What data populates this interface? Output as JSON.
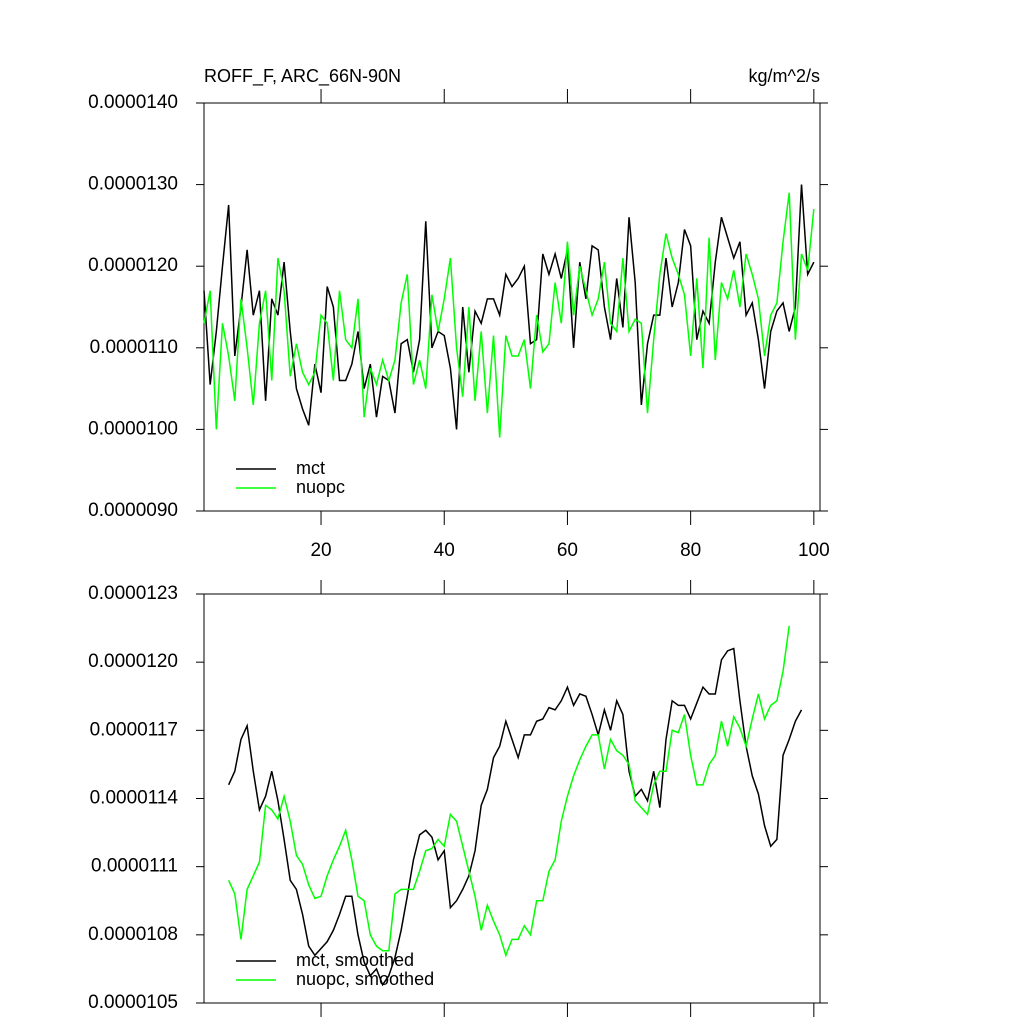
{
  "chart_data": [
    {
      "type": "line",
      "title_left": "ROFF_F, ARC_66N-90N",
      "title_right": "kg/m^2/s",
      "x": [
        1,
        2,
        3,
        4,
        5,
        6,
        7,
        8,
        9,
        10,
        11,
        12,
        13,
        14,
        15,
        16,
        17,
        18,
        19,
        20,
        21,
        22,
        23,
        24,
        25,
        26,
        27,
        28,
        29,
        30,
        31,
        32,
        33,
        34,
        35,
        36,
        37,
        38,
        39,
        40,
        41,
        42,
        43,
        44,
        45,
        46,
        47,
        48,
        49,
        50,
        51,
        52,
        53,
        54,
        55,
        56,
        57,
        58,
        59,
        60,
        61,
        62,
        63,
        64,
        65,
        66,
        67,
        68,
        69,
        70,
        71,
        72,
        73,
        74,
        75,
        76,
        77,
        78,
        79,
        80,
        81,
        82,
        83,
        84,
        85,
        86,
        87,
        88,
        89,
        90,
        91,
        92,
        93,
        94,
        95,
        96,
        97,
        98,
        99,
        100
      ],
      "series": [
        {
          "name": "mct",
          "color": "#000000",
          "values": [
            1.17e-05,
            1.055e-05,
            1.12e-05,
            1.2e-05,
            1.275e-05,
            1.09e-05,
            1.15e-05,
            1.22e-05,
            1.14e-05,
            1.17e-05,
            1.035e-05,
            1.16e-05,
            1.14e-05,
            1.205e-05,
            1.12e-05,
            1.05e-05,
            1.025e-05,
            1.005e-05,
            1.08e-05,
            1.045e-05,
            1.175e-05,
            1.15e-05,
            1.06e-05,
            1.06e-05,
            1.08e-05,
            1.12e-05,
            1.05e-05,
            1.08e-05,
            1.015e-05,
            1.065e-05,
            1.06e-05,
            1.02e-05,
            1.105e-05,
            1.11e-05,
            1.07e-05,
            1.11e-05,
            1.255e-05,
            1.1e-05,
            1.12e-05,
            1.115e-05,
            1.075e-05,
            1e-05,
            1.15e-05,
            1.07e-05,
            1.145e-05,
            1.13e-05,
            1.16e-05,
            1.16e-05,
            1.14e-05,
            1.19e-05,
            1.175e-05,
            1.185e-05,
            1.2e-05,
            1.105e-05,
            1.11e-05,
            1.215e-05,
            1.19e-05,
            1.215e-05,
            1.185e-05,
            1.22e-05,
            1.1e-05,
            1.205e-05,
            1.16e-05,
            1.225e-05,
            1.22e-05,
            1.15e-05,
            1.11e-05,
            1.185e-05,
            1.125e-05,
            1.26e-05,
            1.18e-05,
            1.03e-05,
            1.105e-05,
            1.14e-05,
            1.14e-05,
            1.21e-05,
            1.15e-05,
            1.18e-05,
            1.245e-05,
            1.225e-05,
            1.11e-05,
            1.145e-05,
            1.13e-05,
            1.205e-05,
            1.26e-05,
            1.235e-05,
            1.21e-05,
            1.23e-05,
            1.14e-05,
            1.155e-05,
            1.11e-05,
            1.05e-05,
            1.12e-05,
            1.145e-05,
            1.155e-05,
            1.12e-05,
            1.15e-05,
            1.3e-05,
            1.19e-05,
            1.205e-05
          ]
        },
        {
          "name": "nuopc",
          "color": "#00ff00",
          "values": [
            1.13e-05,
            1.17e-05,
            1e-05,
            1.13e-05,
            1.09e-05,
            1.035e-05,
            1.16e-05,
            1.1e-05,
            1.03e-05,
            1.13e-05,
            1.17e-05,
            1.06e-05,
            1.21e-05,
            1.17e-05,
            1.065e-05,
            1.105e-05,
            1.07e-05,
            1.055e-05,
            1.07e-05,
            1.14e-05,
            1.13e-05,
            1.06e-05,
            1.17e-05,
            1.11e-05,
            1.1e-05,
            1.16e-05,
            1.015e-05,
            1.075e-05,
            1.055e-05,
            1.085e-05,
            1.06e-05,
            1.085e-05,
            1.155e-05,
            1.19e-05,
            1.055e-05,
            1.085e-05,
            1.05e-05,
            1.165e-05,
            1.12e-05,
            1.16e-05,
            1.21e-05,
            1.1e-05,
            1.04e-05,
            1.15e-05,
            1.035e-05,
            1.12e-05,
            1.02e-05,
            1.115e-05,
            9.9e-06,
            1.115e-05,
            1.09e-05,
            1.09e-05,
            1.11e-05,
            1.05e-05,
            1.14e-05,
            1.095e-05,
            1.105e-05,
            1.18e-05,
            1.13e-05,
            1.23e-05,
            1.14e-05,
            1.2e-05,
            1.17e-05,
            1.14e-05,
            1.16e-05,
            1.205e-05,
            1.13e-05,
            1.12e-05,
            1.21e-05,
            1.12e-05,
            1.135e-05,
            1.13e-05,
            1.02e-05,
            1.11e-05,
            1.19e-05,
            1.24e-05,
            1.21e-05,
            1.19e-05,
            1.165e-05,
            1.09e-05,
            1.185e-05,
            1.075e-05,
            1.235e-05,
            1.085e-05,
            1.18e-05,
            1.16e-05,
            1.195e-05,
            1.15e-05,
            1.215e-05,
            1.19e-05,
            1.16e-05,
            1.09e-05,
            1.14e-05,
            1.155e-05,
            1.23e-05,
            1.29e-05,
            1.11e-05,
            1.215e-05,
            1.195e-05,
            1.27e-05
          ]
        }
      ],
      "xlim": [
        1,
        101
      ],
      "xticks": [
        20,
        40,
        60,
        80,
        100
      ],
      "ylim": [
        9e-06,
        1.4e-05
      ],
      "yticks": [
        {
          "value": 9e-06,
          "label": "0.0000090"
        },
        {
          "value": 1e-05,
          "label": "0.0000100"
        },
        {
          "value": 1.1e-05,
          "label": "0.0000110"
        },
        {
          "value": 1.2e-05,
          "label": "0.0000120"
        },
        {
          "value": 1.3e-05,
          "label": "0.0000130"
        },
        {
          "value": 1.4e-05,
          "label": "0.0000140"
        }
      ],
      "legend": "lower left"
    },
    {
      "type": "line",
      "x": [
        1,
        2,
        3,
        4,
        5,
        6,
        7,
        8,
        9,
        10,
        11,
        12,
        13,
        14,
        15,
        16,
        17,
        18,
        19,
        20,
        21,
        22,
        23,
        24,
        25,
        26,
        27,
        28,
        29,
        30,
        31,
        32,
        33,
        34,
        35,
        36,
        37,
        38,
        39,
        40,
        41,
        42,
        43,
        44,
        45,
        46,
        47,
        48,
        49,
        50,
        51,
        52,
        53,
        54,
        55,
        56,
        57,
        58,
        59,
        60,
        61,
        62,
        63,
        64,
        65,
        66,
        67,
        68,
        69,
        70,
        71,
        72,
        73,
        74,
        75,
        76,
        77,
        78,
        79,
        80,
        81,
        82,
        83,
        84,
        85,
        86,
        87,
        88,
        89,
        90,
        91,
        92,
        93,
        94,
        95,
        96,
        97,
        98,
        99,
        100
      ],
      "series": [
        {
          "name": "mct, smoothed",
          "color": "#000000",
          "values": [
            null,
            null,
            null,
            null,
            1.146e-05,
            1.152e-05,
            1.166e-05,
            1.172e-05,
            1.152e-05,
            1.135e-05,
            1.141e-05,
            1.152e-05,
            1.139e-05,
            1.122e-05,
            1.104e-05,
            1.1e-05,
            1.089e-05,
            1.075e-05,
            1.071e-05,
            1.074e-05,
            1.077e-05,
            1.082e-05,
            1.089e-05,
            1.097e-05,
            1.097e-05,
            1.08e-05,
            1.068e-05,
            1.062e-05,
            1.065e-05,
            1.058e-05,
            1.062e-05,
            1.07e-05,
            1.082e-05,
            1.097e-05,
            1.113e-05,
            1.124e-05,
            1.126e-05,
            1.123e-05,
            1.113e-05,
            1.117e-05,
            1.092e-05,
            1.095e-05,
            1.1e-05,
            1.106e-05,
            1.117e-05,
            1.137e-05,
            1.144e-05,
            1.158e-05,
            1.163e-05,
            1.174e-05,
            1.166e-05,
            1.158e-05,
            1.168e-05,
            1.168e-05,
            1.174e-05,
            1.175e-05,
            1.18e-05,
            1.179e-05,
            1.183e-05,
            1.189e-05,
            1.181e-05,
            1.186e-05,
            1.185e-05,
            1.177e-05,
            1.168e-05,
            1.179e-05,
            1.17e-05,
            1.183e-05,
            1.177e-05,
            1.152e-05,
            1.141e-05,
            1.144e-05,
            1.139e-05,
            1.152e-05,
            1.136e-05,
            1.166e-05,
            1.183e-05,
            1.181e-05,
            1.181e-05,
            1.175e-05,
            1.182e-05,
            1.189e-05,
            1.186e-05,
            1.186e-05,
            1.201e-05,
            1.205e-05,
            1.206e-05,
            1.183e-05,
            1.163e-05,
            1.15e-05,
            1.142e-05,
            1.128e-05,
            1.119e-05,
            1.122e-05,
            1.159e-05,
            1.166e-05,
            1.174e-05,
            1.179e-05,
            null,
            null
          ]
        },
        {
          "name": "nuopc, smoothed",
          "color": "#00ff00",
          "values": [
            null,
            null,
            null,
            null,
            1.104e-05,
            1.098e-05,
            1.078e-05,
            1.1e-05,
            1.106e-05,
            1.112e-05,
            1.137e-05,
            1.135e-05,
            1.131e-05,
            1.141e-05,
            1.13e-05,
            1.115e-05,
            1.111e-05,
            1.102e-05,
            1.096e-05,
            1.097e-05,
            1.106e-05,
            1.113e-05,
            1.119e-05,
            1.126e-05,
            1.113e-05,
            1.097e-05,
            1.095e-05,
            1.08e-05,
            1.075e-05,
            1.073e-05,
            1.073e-05,
            1.098e-05,
            1.1e-05,
            1.1e-05,
            1.1e-05,
            1.108e-05,
            1.117e-05,
            1.118e-05,
            1.122e-05,
            1.119e-05,
            1.133e-05,
            1.13e-05,
            1.119e-05,
            1.108e-05,
            1.097e-05,
            1.082e-05,
            1.093e-05,
            1.086e-05,
            1.08e-05,
            1.071e-05,
            1.078e-05,
            1.078e-05,
            1.084e-05,
            1.08e-05,
            1.095e-05,
            1.095e-05,
            1.108e-05,
            1.113e-05,
            1.13e-05,
            1.141e-05,
            1.15e-05,
            1.157e-05,
            1.163e-05,
            1.168e-05,
            1.168e-05,
            1.153e-05,
            1.166e-05,
            1.161e-05,
            1.159e-05,
            1.155e-05,
            1.139e-05,
            1.136e-05,
            1.133e-05,
            1.146e-05,
            1.152e-05,
            1.152e-05,
            1.17e-05,
            1.169e-05,
            1.177e-05,
            1.159e-05,
            1.146e-05,
            1.146e-05,
            1.155e-05,
            1.159e-05,
            1.174e-05,
            1.163e-05,
            1.176e-05,
            1.171e-05,
            1.163e-05,
            1.175e-05,
            1.186e-05,
            1.175e-05,
            1.181e-05,
            1.183e-05,
            1.196e-05,
            1.216e-05,
            null,
            null,
            null,
            null
          ]
        }
      ],
      "xlim": [
        1,
        101
      ],
      "xticks": [
        20,
        40,
        60,
        80,
        100
      ],
      "ylim": [
        1.05e-05,
        1.23e-05
      ],
      "yticks": [
        {
          "value": 1.05e-05,
          "label": "0.0000105"
        },
        {
          "value": 1.08e-05,
          "label": "0.0000108"
        },
        {
          "value": 1.11e-05,
          "label": "0.0000111"
        },
        {
          "value": 1.14e-05,
          "label": "0.0000114"
        },
        {
          "value": 1.17e-05,
          "label": "0.0000117"
        },
        {
          "value": 1.2e-05,
          "label": "0.0000120"
        },
        {
          "value": 1.23e-05,
          "label": "0.0000123"
        }
      ],
      "legend": "lower left"
    }
  ]
}
